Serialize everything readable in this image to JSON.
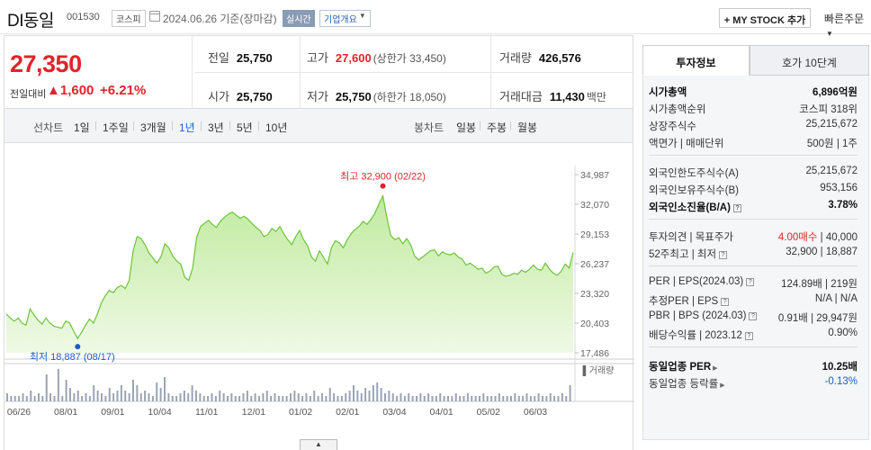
{
  "header": {
    "name": "DI동일",
    "code": "001530",
    "market": "코스피",
    "date": "2024.06.26 기준(장마감)",
    "realtime": "실시간",
    "company_btn": "기업개요",
    "mystock_btn": "+ MY STOCK 추가",
    "quick_order": "빠른주문"
  },
  "price": {
    "current": "27,350",
    "diff_label": "전일대비",
    "diff": "▲1,600",
    "diff_pct": "+6.21%",
    "prev_label": "전일",
    "prev": "25,750",
    "high_label": "고가",
    "high": "27,600",
    "upper_limit": "(상한가 33,450)",
    "volume_label": "거래량",
    "volume": "426,576",
    "open_label": "시가",
    "open": "25,750",
    "low_label": "저가",
    "low": "25,750",
    "lower_limit": "(하한가 18,050)",
    "amount_label": "거래대금",
    "amount": "11,430",
    "amount_unit": "백만"
  },
  "tabs": {
    "line_label": "선차트",
    "periods": [
      "1일",
      "1주일",
      "3개월",
      "1년",
      "3년",
      "5년",
      "10년"
    ],
    "active": "1년",
    "candle_label": "봉차트",
    "candles": [
      "일봉",
      "주봉",
      "월봉"
    ]
  },
  "chart_data": {
    "type": "area",
    "y_ticks": [
      "34,987",
      "32,070",
      "29,153",
      "26,237",
      "23,320",
      "20,403",
      "17,486"
    ],
    "y_range": [
      17486,
      34987
    ],
    "x_ticks": [
      "06/26",
      "08/01",
      "09/01",
      "10/04",
      "11/01",
      "12/01",
      "01/02",
      "02/01",
      "03/04",
      "04/01",
      "05/02",
      "06/03"
    ],
    "high_label": "최고 32,900 (02/22)",
    "low_label": "최저 18,887 (08/17)",
    "volume_label": "거래량",
    "fill_color": "#cdeeb0",
    "line_color": "#6cc43a",
    "values": [
      21300,
      20900,
      20600,
      20900,
      20400,
      20200,
      21800,
      21200,
      20700,
      20300,
      20900,
      20400,
      20100,
      20000,
      19900,
      20600,
      20400,
      19600,
      18887,
      19500,
      20200,
      20800,
      20400,
      21300,
      22400,
      23100,
      23600,
      23400,
      23900,
      24100,
      23800,
      24600,
      27500,
      28900,
      28700,
      28100,
      27300,
      26800,
      26300,
      26900,
      28200,
      27800,
      27000,
      26500,
      26200,
      24900,
      24600,
      25800,
      28800,
      29900,
      30200,
      30500,
      30100,
      29800,
      30400,
      30800,
      31100,
      31300,
      31000,
      30700,
      30900,
      30600,
      30200,
      29800,
      29500,
      28900,
      29100,
      29700,
      29400,
      29900,
      29200,
      28600,
      28100,
      28900,
      29500,
      28600,
      28000,
      26900,
      26500,
      27500,
      26900,
      26200,
      27800,
      28500,
      28300,
      27800,
      28600,
      29200,
      29600,
      29900,
      30400,
      30100,
      30600,
      31200,
      32100,
      32900,
      30800,
      29000,
      28600,
      28800,
      28200,
      28700,
      28100,
      27000,
      26600,
      26900,
      27200,
      27500,
      27600,
      27000,
      27400,
      27200,
      27100,
      27300,
      26900,
      26700,
      26100,
      26300,
      26000,
      25700,
      25800,
      25300,
      25500,
      25900,
      26000,
      25200,
      25000,
      25100,
      25300,
      25200,
      25600,
      25400,
      25700,
      26100,
      25700,
      25600,
      26300,
      25700,
      25300,
      25100,
      25500,
      26200,
      25800,
      27350
    ],
    "volumes": [
      3,
      2,
      2,
      2,
      3,
      2,
      4,
      2,
      3,
      2,
      10,
      3,
      2,
      12,
      2,
      8,
      5,
      3,
      4,
      2,
      3,
      2,
      6,
      4,
      3,
      2,
      5,
      3,
      4,
      6,
      4,
      3,
      8,
      6,
      3,
      4,
      3,
      2,
      7,
      5,
      9,
      3,
      2,
      2,
      3,
      4,
      3,
      6,
      4,
      3,
      2,
      2,
      3,
      2,
      4,
      3,
      2,
      3,
      2,
      2,
      3,
      4,
      2,
      3,
      2,
      3,
      4,
      2,
      3,
      2,
      2,
      2,
      3,
      4,
      3,
      2,
      3,
      2,
      4,
      2,
      3,
      2,
      5,
      3,
      2,
      2,
      3,
      4,
      6,
      4,
      3,
      5,
      4,
      6,
      7,
      5,
      3,
      4,
      3,
      2,
      3,
      2,
      3,
      2,
      2,
      3,
      2,
      3,
      2,
      2,
      3,
      2,
      2,
      2,
      3,
      2,
      2,
      3,
      2,
      2,
      2,
      3,
      2,
      2,
      2,
      3,
      2,
      2,
      2,
      3,
      2,
      2,
      3,
      2,
      2,
      3,
      2,
      2,
      3,
      2,
      2,
      3,
      2,
      6
    ]
  },
  "right": {
    "tab_active": "투자정보",
    "tab_inactive": "호가 10단계",
    "market_cap_label": "시가총액",
    "market_cap": "6,896억원",
    "rank_label": "시가총액순위",
    "rank": "코스피 318위",
    "shares_label": "상장주식수",
    "shares": "25,215,672",
    "par_label": "액면가 | 매매단위",
    "par": "500원 | 1주",
    "foreign_limit_label": "외국인한도주식수(A)",
    "foreign_limit": "25,215,672",
    "foreign_hold_label": "외국인보유주식수(B)",
    "foreign_hold": "953,156",
    "foreign_ratio_label": "외국인소진율(B/A)",
    "foreign_ratio": "3.78%",
    "opinion_label": "투자의견 | 목표주가",
    "opinion": "4.00매수",
    "target": "40,000",
    "week52_label": "52주최고 | 최저",
    "week52": "32,900 | 18,887",
    "per_label": "PER | EPS(2024.03)",
    "per": "124.89배 | 219원",
    "est_per_label": "추정PER | EPS",
    "est_per": "N/A | N/A",
    "pbr_label": "PBR | BPS (2024.03)",
    "pbr": "0.91배 | 29,947원",
    "div_label": "배당수익률 | 2023.12",
    "div": "0.90%",
    "ind_per_label": "동일업종 PER",
    "ind_per": "10.25배",
    "ind_rate_label": "동일업종 등락률",
    "ind_rate": "-0.13%"
  }
}
